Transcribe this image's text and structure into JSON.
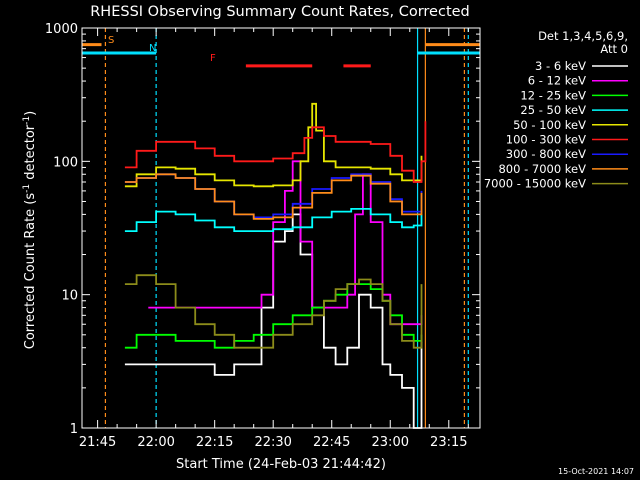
{
  "chart_data": {
    "type": "line",
    "title": "RHESSI Observing Summary Count Rates, Corrected",
    "xlabel": "Start Time (24-Feb-03 21:44:42)",
    "ylabel_main": "Corrected Count Rate (s",
    "ylabel_sup1": "-1",
    "ylabel_mid": " detector",
    "ylabel_sup2": "-1",
    "ylabel_end": ")",
    "yscale": "log",
    "xlim": [
      "21:41",
      "23:23"
    ],
    "ylim": [
      1,
      1000
    ],
    "xticks": [
      "21:45",
      "22:00",
      "22:15",
      "22:30",
      "22:45",
      "23:00",
      "23:15"
    ],
    "yticks": [
      "1",
      "10",
      "100",
      "1000"
    ],
    "timestamp": "15-Oct-2021 14:07",
    "legend_header": [
      "Det 1,3,4,5,6,9,",
      "Att 0"
    ],
    "markers": {
      "S": "S",
      "N": "N",
      "F": "F"
    },
    "vertical_lines": [
      {
        "time": "21:47",
        "style": "dashed",
        "color": "#ff8c1a"
      },
      {
        "time": "22:00",
        "style": "dashed",
        "color": "#00e0ff"
      },
      {
        "time": "23:07",
        "style": "solid",
        "color": "#00e0ff"
      },
      {
        "time": "23:09",
        "style": "solid",
        "color": "#ff8c1a"
      },
      {
        "time": "23:19",
        "style": "dashed",
        "color": "#ff8c1a"
      },
      {
        "time": "23:20",
        "style": "dashed",
        "color": "#00e0ff"
      }
    ],
    "flag_bars": [
      {
        "label": "S",
        "from": "21:41",
        "to": "21:46",
        "y": 750,
        "color": "#ff8c1a"
      },
      {
        "label": "S",
        "from": "23:09",
        "to": "23:23",
        "y": 750,
        "color": "#ff8c1a"
      },
      {
        "label": "N",
        "from": "21:41",
        "to": "22:00",
        "y": 650,
        "color": "#00e0ff"
      },
      {
        "label": "N",
        "from": "23:07",
        "to": "23:23",
        "y": 650,
        "color": "#00e0ff"
      },
      {
        "label": "F",
        "from": "22:23",
        "to": "22:40",
        "y": 520,
        "color": "#ff1a1a"
      },
      {
        "label": "F",
        "from": "22:48",
        "to": "22:55",
        "y": 520,
        "color": "#ff1a1a"
      }
    ],
    "series": [
      {
        "name": "3 - 6 keV",
        "color": "#ffffff",
        "x": [
          "21:52",
          "21:57",
          "22:00",
          "22:05",
          "22:10",
          "22:15",
          "22:20",
          "22:24",
          "22:27",
          "22:30",
          "22:33",
          "22:35",
          "22:37",
          "22:40",
          "22:43",
          "22:46",
          "22:49",
          "22:52",
          "22:55",
          "22:58",
          "23:00",
          "23:03",
          "23:06",
          "23:08"
        ],
        "y": [
          3,
          3,
          3,
          3,
          3,
          2.5,
          3,
          3,
          8,
          25,
          30,
          40,
          20,
          8,
          4,
          3,
          4,
          10,
          8,
          3,
          2.5,
          2,
          1,
          5
        ]
      },
      {
        "name": "6 - 12 keV",
        "color": "#ff00ff",
        "x": [
          "21:58",
          "22:00",
          "22:05",
          "22:10",
          "22:15",
          "22:20",
          "22:24",
          "22:27",
          "22:30",
          "22:33",
          "22:35",
          "22:37",
          "22:40",
          "22:43",
          "22:46",
          "22:49",
          "22:51",
          "22:53",
          "22:55",
          "22:58",
          "23:00",
          "23:03",
          "23:06",
          "23:08"
        ],
        "y": [
          8,
          8,
          8,
          8,
          8,
          8,
          8,
          10,
          35,
          60,
          100,
          25,
          8,
          8,
          8,
          10,
          40,
          80,
          35,
          10,
          6,
          6,
          6,
          7
        ]
      },
      {
        "name": "12 - 25 keV",
        "color": "#00ff00",
        "x": [
          "21:52",
          "21:55",
          "22:00",
          "22:05",
          "22:10",
          "22:15",
          "22:20",
          "22:25",
          "22:30",
          "22:35",
          "22:40",
          "22:43",
          "22:46",
          "22:49",
          "22:52",
          "22:55",
          "22:58",
          "23:00",
          "23:03",
          "23:06",
          "23:08"
        ],
        "y": [
          4,
          5,
          5,
          4.5,
          4.5,
          4,
          4.5,
          5,
          6,
          7,
          8,
          9,
          10,
          12,
          12,
          11,
          9,
          7,
          5,
          4.5,
          5
        ]
      },
      {
        "name": "25 - 50 keV",
        "color": "#00ffff",
        "x": [
          "21:52",
          "21:55",
          "22:00",
          "22:05",
          "22:10",
          "22:15",
          "22:20",
          "22:25",
          "22:30",
          "22:35",
          "22:40",
          "22:45",
          "22:50",
          "22:55",
          "23:00",
          "23:03",
          "23:06",
          "23:08"
        ],
        "y": [
          30,
          35,
          42,
          40,
          36,
          32,
          30,
          30,
          31,
          32,
          38,
          42,
          44,
          40,
          35,
          32,
          33,
          40
        ]
      },
      {
        "name": "50 - 100 keV",
        "color": "#e6e600",
        "x": [
          "21:52",
          "21:55",
          "22:00",
          "22:05",
          "22:10",
          "22:15",
          "22:20",
          "22:25",
          "22:30",
          "22:35",
          "22:37",
          "22:39",
          "22:40",
          "22:41",
          "22:43",
          "22:46",
          "22:50",
          "22:55",
          "23:00",
          "23:03",
          "23:06",
          "23:08"
        ],
        "y": [
          65,
          80,
          90,
          88,
          80,
          72,
          66,
          65,
          66,
          72,
          100,
          180,
          270,
          170,
          100,
          90,
          90,
          88,
          80,
          72,
          72,
          110
        ]
      },
      {
        "name": "100 - 300 keV",
        "color": "#ff1a1a",
        "x": [
          "21:52",
          "21:55",
          "22:00",
          "22:05",
          "22:10",
          "22:15",
          "22:20",
          "22:25",
          "22:30",
          "22:35",
          "22:38",
          "22:40",
          "22:43",
          "22:46",
          "22:50",
          "22:55",
          "23:00",
          "23:03",
          "23:06",
          "23:08",
          "23:09"
        ],
        "y": [
          90,
          120,
          140,
          140,
          125,
          110,
          100,
          100,
          105,
          115,
          150,
          180,
          155,
          140,
          140,
          135,
          110,
          85,
          70,
          100,
          200
        ]
      },
      {
        "name": "300 - 800 keV",
        "color": "#1a1aff",
        "x": [
          "21:52",
          "21:55",
          "22:00",
          "22:05",
          "22:10",
          "22:15",
          "22:20",
          "22:25",
          "22:30",
          "22:35",
          "22:40",
          "22:45",
          "22:50",
          "22:55",
          "23:00",
          "23:03",
          "23:06",
          "23:08"
        ],
        "y": [
          70,
          75,
          80,
          75,
          62,
          50,
          40,
          38,
          40,
          48,
          62,
          75,
          80,
          70,
          52,
          42,
          42,
          60
        ]
      },
      {
        "name": "800 - 7000 keV",
        "color": "#ff8c1a",
        "x": [
          "21:52",
          "21:55",
          "22:00",
          "22:05",
          "22:10",
          "22:15",
          "22:20",
          "22:25",
          "22:30",
          "22:35",
          "22:40",
          "22:45",
          "22:50",
          "22:55",
          "23:00",
          "23:03",
          "23:06",
          "23:08"
        ],
        "y": [
          70,
          75,
          80,
          75,
          62,
          50,
          40,
          37,
          38,
          45,
          58,
          72,
          78,
          68,
          50,
          40,
          40,
          58
        ]
      },
      {
        "name": "7000 - 15000 keV",
        "color": "#8c8c1a",
        "x": [
          "21:52",
          "21:55",
          "22:00",
          "22:05",
          "22:10",
          "22:15",
          "22:20",
          "22:25",
          "22:30",
          "22:35",
          "22:40",
          "22:43",
          "22:46",
          "22:49",
          "22:52",
          "22:55",
          "22:58",
          "23:00",
          "23:03",
          "23:06",
          "23:08"
        ],
        "y": [
          12,
          14,
          12,
          8,
          6,
          5,
          4,
          4,
          5,
          6,
          7,
          9,
          11,
          12,
          13,
          12,
          9,
          6,
          4.5,
          4,
          12
        ]
      }
    ]
  }
}
